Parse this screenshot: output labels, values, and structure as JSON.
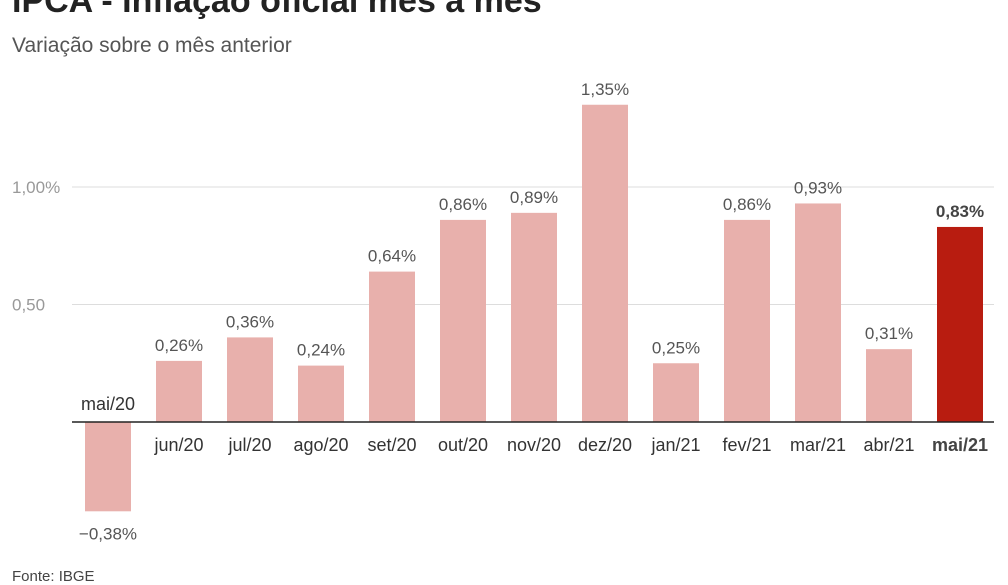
{
  "title": "IPCA - Inflação oficial mês a mês",
  "subtitle": "Variação sobre o mês anterior",
  "source": "Fonte: IBGE",
  "colors": {
    "bar": "#e8b0ac",
    "highlight": "#b81c10",
    "grid": "#dddddd",
    "axis": "#222222"
  },
  "chart_data": {
    "type": "bar",
    "categories": [
      "mai/20",
      "jun/20",
      "jul/20",
      "ago/20",
      "set/20",
      "out/20",
      "nov/20",
      "dez/20",
      "jan/21",
      "fev/21",
      "mar/21",
      "abr/21",
      "mai/21"
    ],
    "values": [
      -0.38,
      0.26,
      0.36,
      0.24,
      0.64,
      0.86,
      0.89,
      1.35,
      0.25,
      0.86,
      0.93,
      0.31,
      0.83
    ],
    "value_labels": [
      "−0,38%",
      "0,26%",
      "0,36%",
      "0,24%",
      "0,64%",
      "0,86%",
      "0,89%",
      "1,35%",
      "0,25%",
      "0,86%",
      "0,93%",
      "0,31%",
      "0,83%"
    ],
    "yticks": [
      0.5,
      1.0
    ],
    "ytick_labels": [
      "0,50",
      "1,00%"
    ],
    "highlight_index": 12,
    "grid": true
  }
}
